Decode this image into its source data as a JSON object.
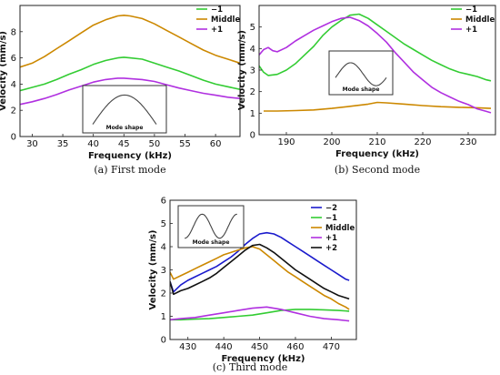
{
  "chart_data": [
    {
      "type": "line",
      "caption_letter": "(a)",
      "caption_text": " First mode",
      "xlabel": "Frequency (kHz)",
      "ylabel": "Velocity (mm/s)",
      "xlim": [
        28,
        64
      ],
      "ylim": [
        0,
        10
      ],
      "xticks": [
        30,
        35,
        40,
        45,
        50,
        55,
        60
      ],
      "yticks": [
        0,
        2,
        4,
        6,
        8
      ],
      "legend_position": "top-right",
      "inset_label": "Mode shape",
      "inset_shape": "single-peak",
      "series": [
        {
          "name": "−1",
          "color": "#33cc33",
          "x": [
            28,
            30,
            32,
            34,
            36,
            38,
            40,
            42,
            44,
            45,
            46,
            48,
            50,
            52,
            54,
            56,
            58,
            60,
            62,
            64
          ],
          "y": [
            3.5,
            3.75,
            4.0,
            4.35,
            4.75,
            5.1,
            5.5,
            5.8,
            6.0,
            6.05,
            6.0,
            5.9,
            5.6,
            5.3,
            5.0,
            4.65,
            4.3,
            4.0,
            3.8,
            3.6
          ]
        },
        {
          "name": "Middle",
          "color": "#cc8800",
          "x": [
            28,
            30,
            32,
            34,
            36,
            38,
            40,
            42,
            44,
            45,
            46,
            48,
            50,
            52,
            54,
            56,
            58,
            60,
            62,
            64
          ],
          "y": [
            5.3,
            5.6,
            6.1,
            6.7,
            7.3,
            7.9,
            8.5,
            8.9,
            9.2,
            9.25,
            9.2,
            9.0,
            8.6,
            8.1,
            7.6,
            7.1,
            6.6,
            6.2,
            5.9,
            5.6
          ]
        },
        {
          "name": "+1",
          "color": "#b030e0",
          "x": [
            28,
            30,
            32,
            34,
            36,
            38,
            40,
            42,
            44,
            45,
            46,
            48,
            50,
            52,
            54,
            56,
            58,
            60,
            62,
            64
          ],
          "y": [
            2.45,
            2.65,
            2.9,
            3.2,
            3.55,
            3.85,
            4.15,
            4.35,
            4.45,
            4.45,
            4.42,
            4.35,
            4.2,
            3.95,
            3.7,
            3.5,
            3.3,
            3.15,
            3.0,
            2.9
          ]
        }
      ]
    },
    {
      "type": "line",
      "caption_letter": "(b)",
      "caption_text": " Second mode",
      "xlabel": "Frequency (kHz)",
      "ylabel": "Velocity (mm/s)",
      "xlim": [
        184,
        236
      ],
      "ylim": [
        0,
        6
      ],
      "xticks": [
        190,
        200,
        210,
        220,
        230
      ],
      "yticks": [
        0,
        1,
        2,
        3,
        4,
        5
      ],
      "legend_position": "top-right",
      "inset_label": "Mode shape",
      "inset_shape": "two-lobe",
      "series": [
        {
          "name": "−1",
          "color": "#33cc33",
          "x": [
            184,
            185,
            186,
            188,
            190,
            192,
            194,
            196,
            198,
            200,
            202,
            204,
            206,
            208,
            210,
            212,
            214,
            216,
            218,
            220,
            222,
            224,
            226,
            228,
            230,
            232,
            234,
            235
          ],
          "y": [
            3.2,
            2.9,
            2.75,
            2.8,
            3.0,
            3.3,
            3.7,
            4.1,
            4.6,
            5.0,
            5.3,
            5.55,
            5.6,
            5.4,
            5.1,
            4.8,
            4.5,
            4.2,
            3.95,
            3.7,
            3.45,
            3.25,
            3.05,
            2.9,
            2.8,
            2.7,
            2.55,
            2.5
          ]
        },
        {
          "name": "Middle",
          "color": "#cc8800",
          "x": [
            185,
            188,
            192,
            196,
            200,
            204,
            208,
            210,
            212,
            216,
            220,
            224,
            228,
            232,
            235
          ],
          "y": [
            1.1,
            1.1,
            1.12,
            1.15,
            1.22,
            1.32,
            1.42,
            1.5,
            1.48,
            1.42,
            1.35,
            1.3,
            1.27,
            1.25,
            1.22
          ]
        },
        {
          "name": "+1",
          "color": "#b030e0",
          "x": [
            184,
            185,
            186,
            187,
            188,
            190,
            192,
            194,
            196,
            198,
            200,
            202,
            204,
            206,
            208,
            210,
            212,
            214,
            216,
            218,
            220,
            222,
            224,
            226,
            228,
            230,
            232,
            234,
            235
          ],
          "y": [
            3.7,
            3.95,
            4.05,
            3.9,
            3.85,
            4.05,
            4.35,
            4.6,
            4.85,
            5.05,
            5.25,
            5.4,
            5.45,
            5.3,
            5.05,
            4.7,
            4.3,
            3.8,
            3.35,
            2.9,
            2.55,
            2.2,
            1.95,
            1.75,
            1.55,
            1.4,
            1.2,
            1.08,
            1.02
          ]
        }
      ]
    },
    {
      "type": "line",
      "caption_letter": "(c)",
      "caption_text": " Third mode",
      "xlabel": "Frequency (kHz)",
      "ylabel": "Velocity (mm/s)",
      "xlim": [
        425,
        477
      ],
      "ylim": [
        0,
        6
      ],
      "xticks": [
        430,
        440,
        450,
        460,
        470
      ],
      "yticks": [
        0,
        1,
        2,
        3,
        4,
        5,
        6
      ],
      "legend_position": "top-right",
      "inset_label": "Mode shape",
      "inset_shape": "three-peak",
      "series": [
        {
          "name": "−2",
          "color": "#1a1acc",
          "x": [
            425,
            426,
            428,
            430,
            432,
            434,
            436,
            438,
            440,
            442,
            444,
            446,
            448,
            450,
            452,
            454,
            456,
            458,
            460,
            462,
            464,
            466,
            468,
            470,
            472,
            474,
            475
          ],
          "y": [
            2.5,
            2.05,
            2.35,
            2.55,
            2.7,
            2.85,
            3.0,
            3.15,
            3.35,
            3.55,
            3.8,
            4.1,
            4.35,
            4.55,
            4.6,
            4.55,
            4.4,
            4.2,
            4.0,
            3.8,
            3.6,
            3.4,
            3.2,
            3.0,
            2.8,
            2.6,
            2.55
          ]
        },
        {
          "name": "−1",
          "color": "#33cc33",
          "x": [
            425,
            428,
            432,
            436,
            440,
            444,
            448,
            452,
            456,
            460,
            464,
            468,
            472,
            475
          ],
          "y": [
            0.85,
            0.85,
            0.88,
            0.9,
            0.95,
            1.0,
            1.05,
            1.15,
            1.25,
            1.3,
            1.3,
            1.28,
            1.25,
            1.22
          ]
        },
        {
          "name": "Middle",
          "color": "#cc8800",
          "x": [
            425,
            426,
            428,
            430,
            432,
            434,
            436,
            438,
            440,
            442,
            444,
            446,
            448,
            450,
            452,
            454,
            456,
            458,
            460,
            462,
            464,
            466,
            468,
            470,
            472,
            474,
            475
          ],
          "y": [
            2.9,
            2.6,
            2.75,
            2.9,
            3.05,
            3.2,
            3.35,
            3.5,
            3.65,
            3.75,
            3.85,
            3.95,
            4.0,
            3.9,
            3.65,
            3.4,
            3.15,
            2.9,
            2.7,
            2.5,
            2.3,
            2.1,
            1.9,
            1.75,
            1.55,
            1.4,
            1.3
          ]
        },
        {
          "name": "+1",
          "color": "#b030e0",
          "x": [
            425,
            428,
            432,
            436,
            440,
            444,
            448,
            452,
            456,
            460,
            464,
            468,
            472,
            475
          ],
          "y": [
            0.85,
            0.9,
            0.95,
            1.05,
            1.15,
            1.25,
            1.35,
            1.4,
            1.3,
            1.15,
            1.0,
            0.9,
            0.85,
            0.8
          ]
        },
        {
          "name": "+2",
          "color": "#111111",
          "x": [
            425,
            426,
            428,
            430,
            432,
            434,
            436,
            438,
            440,
            442,
            444,
            446,
            448,
            450,
            452,
            454,
            456,
            458,
            460,
            462,
            464,
            466,
            468,
            470,
            472,
            474,
            475
          ],
          "y": [
            2.5,
            1.95,
            2.1,
            2.2,
            2.35,
            2.5,
            2.65,
            2.85,
            3.1,
            3.35,
            3.6,
            3.85,
            4.05,
            4.1,
            3.95,
            3.75,
            3.5,
            3.25,
            3.0,
            2.8,
            2.6,
            2.4,
            2.2,
            2.05,
            1.9,
            1.8,
            1.75
          ]
        }
      ]
    }
  ]
}
